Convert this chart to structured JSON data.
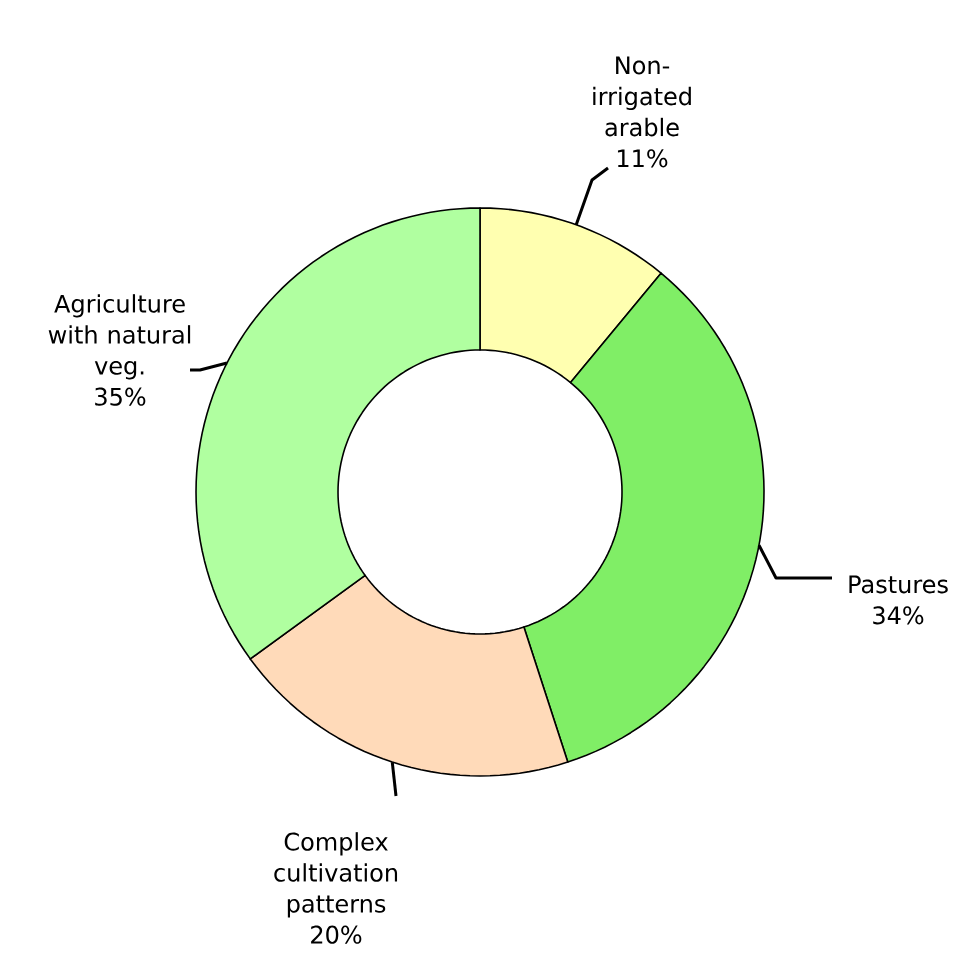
{
  "chart_data": {
    "type": "donut",
    "categories": [
      "Non-irrigated arable",
      "Pastures",
      "Complex cultivation patterns",
      "Agriculture with natural veg."
    ],
    "values": [
      11,
      34,
      20,
      35
    ],
    "colors": [
      "#ffffb0",
      "#80ee66",
      "#ffdab9",
      "#b0ffa0"
    ],
    "value_labels": [
      "11%",
      "34%",
      "20%",
      "35%"
    ]
  }
}
